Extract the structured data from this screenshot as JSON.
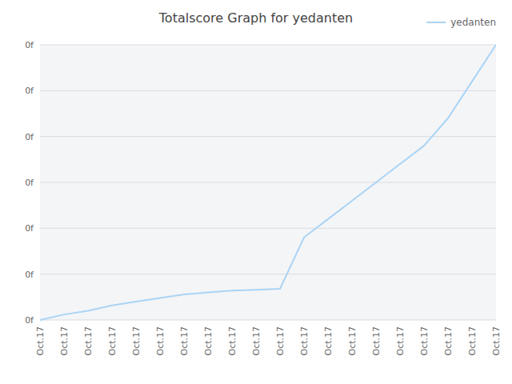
{
  "chart_data": {
    "type": "line",
    "title": "Totalscore Graph for yedanten",
    "categories": [
      "Oct.17",
      "Oct.17",
      "Oct.17",
      "Oct.17",
      "Oct.17",
      "Oct.17",
      "Oct.17",
      "Oct.17",
      "Oct.17",
      "Oct.17",
      "Oct.17",
      "Oct.17",
      "Oct.17",
      "Oct.17",
      "Oct.17",
      "Oct.17",
      "Oct.17",
      "Oct.17",
      "Oct.17",
      "Oct.17"
    ],
    "series": [
      {
        "name": "yedanten",
        "color": "#aad4f5",
        "values": [
          0,
          0.3,
          0.5,
          0.8,
          1.0,
          1.2,
          1.4,
          1.5,
          1.6,
          1.65,
          1.7,
          4.5,
          5.5,
          6.5,
          7.5,
          8.5,
          9.5,
          11.0,
          13.0,
          15.0
        ]
      }
    ],
    "ylim": [
      0,
      15
    ],
    "yticks": [
      {
        "value": 0,
        "label": "0f"
      },
      {
        "value": 2.5,
        "label": "0f"
      },
      {
        "value": 5,
        "label": "0f"
      },
      {
        "value": 7.5,
        "label": "0f"
      },
      {
        "value": 10,
        "label": "0f"
      },
      {
        "value": 12.5,
        "label": "0f"
      },
      {
        "value": 15,
        "label": "0f"
      }
    ],
    "grid": true,
    "legend": "upper right"
  }
}
